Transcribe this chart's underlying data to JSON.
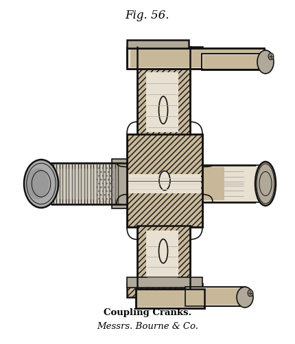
{
  "title": "Fig. 56.",
  "caption_line1": "Coupling Cranks.",
  "caption_line2": "Messrs. Bourne & Co.",
  "bg_color": "#ffffff",
  "fig_width": 4.31,
  "fig_height": 5.0,
  "dpi": 100,
  "title_fontsize": 12,
  "caption1_fontsize": 9.5,
  "caption2_fontsize": 9.5,
  "line_color": "#111111",
  "hatch_fill": "#c8b89a",
  "light_fill": "#e8e0d0",
  "mid_fill": "#b0a898",
  "dark_fill": "#888070"
}
